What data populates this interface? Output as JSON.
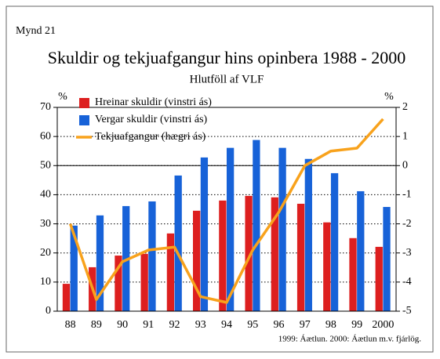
{
  "chart_data": {
    "type": "bar_line",
    "figure_label": "Mynd 21",
    "title": "Skuldir og tekjuafgangur hins opinbera 1988 - 2000",
    "subtitle": "Hlutföll af VLF",
    "y_label": "%",
    "y2_label": "%",
    "note": "1999: Áætlun.  2000: Áætlun m.v. fjárlög.",
    "categories": [
      "88",
      "89",
      "90",
      "91",
      "92",
      "93",
      "94",
      "95",
      "96",
      "97",
      "98",
      "99",
      "2000"
    ],
    "series": [
      {
        "name": "Hreinar skuldir (vinstri ás)",
        "color": "#dd1f1f",
        "type": "bar",
        "values": [
          9.4,
          15.1,
          19.1,
          19.7,
          26.7,
          34.5,
          38.0,
          39.6,
          39.1,
          36.9,
          30.5,
          25.1,
          22.1
        ]
      },
      {
        "name": "Vergar skuldir (vinstri ás)",
        "color": "#1762d8",
        "type": "bar",
        "values": [
          29.4,
          32.9,
          36.1,
          37.7,
          46.6,
          52.8,
          56.1,
          58.8,
          56.1,
          52.3,
          47.4,
          41.2,
          35.8
        ]
      },
      {
        "name": "Tekjuafgangur (hægri ás)",
        "color": "#f8a21c",
        "type": "line",
        "axis": "y2",
        "values": [
          -2.0,
          -4.6,
          -3.3,
          -2.9,
          -2.8,
          -4.5,
          -4.7,
          -2.9,
          -1.6,
          0.0,
          0.5,
          0.6,
          1.6
        ]
      }
    ],
    "ylim": [
      0,
      70
    ],
    "yticks": [
      0,
      10,
      20,
      30,
      40,
      50,
      60,
      70
    ],
    "y2lim": [
      -5,
      2
    ],
    "y2ticks": [
      -5,
      -4,
      -3,
      -2,
      -1,
      0,
      1,
      2
    ],
    "grid": true,
    "y2_zero_line": true,
    "legend": "top-left"
  }
}
